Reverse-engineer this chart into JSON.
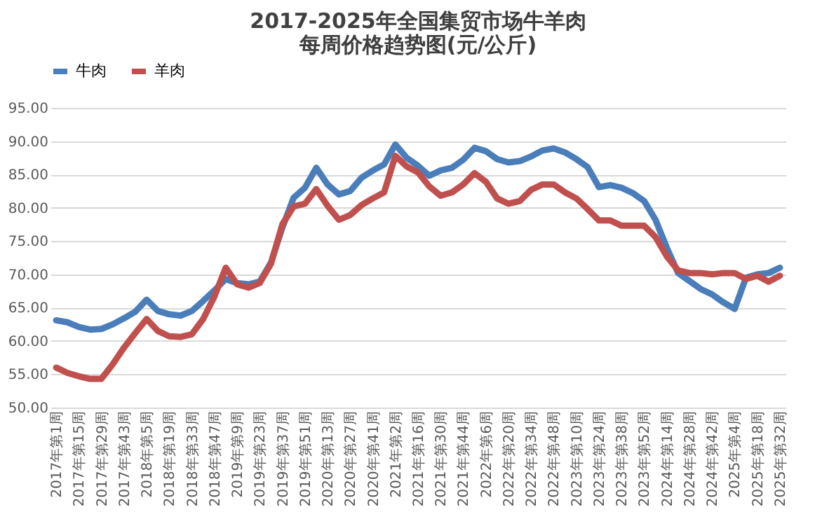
{
  "chart_data": {
    "type": "line",
    "title": [
      "2017-2025年全国集贸市场牛羊肉",
      "每周价格趋势图(元/公斤)"
    ],
    "categories": [
      "2017年第1周",
      null,
      "2017年第15周",
      null,
      "2017年第29周",
      null,
      "2017年第43周",
      null,
      "2018年第5周",
      null,
      "2018年第19周",
      null,
      "2018年第33周",
      null,
      "2018年第47周",
      null,
      "2019年第9周",
      null,
      "2019年第23周",
      null,
      "2019年第37周",
      null,
      "2019年第51周",
      null,
      "2020年第13周",
      null,
      "2020年第27周",
      null,
      "2020年第41周",
      null,
      "2021年第2周",
      null,
      "2021年第16周",
      null,
      "2021年第30周",
      null,
      "2021年第44周",
      null,
      "2022年第6周",
      null,
      "2022年第20周",
      null,
      "2022年第34周",
      null,
      "2022年第48周",
      null,
      "2023年第10周",
      null,
      "2023年第24周",
      null,
      "2023年第38周",
      null,
      "2023年第52周",
      null,
      "2024年第14周",
      null,
      "2024年第28周",
      null,
      "2024年第42周",
      null,
      "2025年第4周",
      null,
      "2025年第18周",
      null,
      "2025年第32周"
    ],
    "series": [
      {
        "name": "牛肉",
        "color": "#4a7ebb",
        "values": [
          63.1,
          62.8,
          62.1,
          61.7,
          61.8,
          62.5,
          63.4,
          64.4,
          66.2,
          64.5,
          64.0,
          63.8,
          64.5,
          66.0,
          67.6,
          69.3,
          68.7,
          68.5,
          68.9,
          71.8,
          77.0,
          81.5,
          83.0,
          86.0,
          83.5,
          82.0,
          82.5,
          84.5,
          85.6,
          86.5,
          89.5,
          87.5,
          86.3,
          84.8,
          85.6,
          86.0,
          87.2,
          89.0,
          88.5,
          87.3,
          86.8,
          87.0,
          87.7,
          88.6,
          88.9,
          88.3,
          87.3,
          86.1,
          83.1,
          83.4,
          83.0,
          82.2,
          81.0,
          78.2,
          74.0,
          70.2,
          69.0,
          67.8,
          67.0,
          65.8,
          64.8,
          69.5,
          70.0,
          70.2,
          71.0
        ]
      },
      {
        "name": "羊肉",
        "color": "#c0504d",
        "values": [
          56.0,
          55.2,
          54.7,
          54.3,
          54.3,
          56.5,
          59.0,
          61.2,
          63.3,
          61.5,
          60.7,
          60.6,
          61.0,
          63.3,
          66.7,
          71.0,
          68.5,
          68.0,
          68.7,
          71.6,
          77.5,
          80.2,
          80.6,
          82.8,
          80.3,
          78.2,
          78.9,
          80.4,
          81.4,
          82.3,
          87.8,
          86.2,
          85.3,
          83.2,
          81.8,
          82.3,
          83.5,
          85.2,
          83.9,
          81.4,
          80.6,
          81.0,
          82.7,
          83.5,
          83.5,
          82.3,
          81.4,
          79.8,
          78.1,
          78.1,
          77.3,
          77.3,
          77.3,
          75.6,
          72.7,
          70.6,
          70.2,
          70.2,
          70.0,
          70.2,
          70.2,
          69.3,
          69.8,
          68.9,
          69.8
        ]
      }
    ],
    "ylim": [
      50,
      95
    ],
    "yticks": [
      {
        "value": 50,
        "label": "50.00"
      },
      {
        "value": 55,
        "label": "55.00"
      },
      {
        "value": 60,
        "label": "60.00"
      },
      {
        "value": 65,
        "label": "65.00"
      },
      {
        "value": 70,
        "label": "70.00"
      },
      {
        "value": 75,
        "label": "75.00"
      },
      {
        "value": 80,
        "label": "80.00"
      },
      {
        "value": 85,
        "label": "85.00"
      },
      {
        "value": 90,
        "label": "90.00"
      },
      {
        "value": 95,
        "label": "95.00"
      }
    ],
    "grid": "y",
    "legend": "top",
    "marker": "none",
    "line_style": "solid"
  }
}
